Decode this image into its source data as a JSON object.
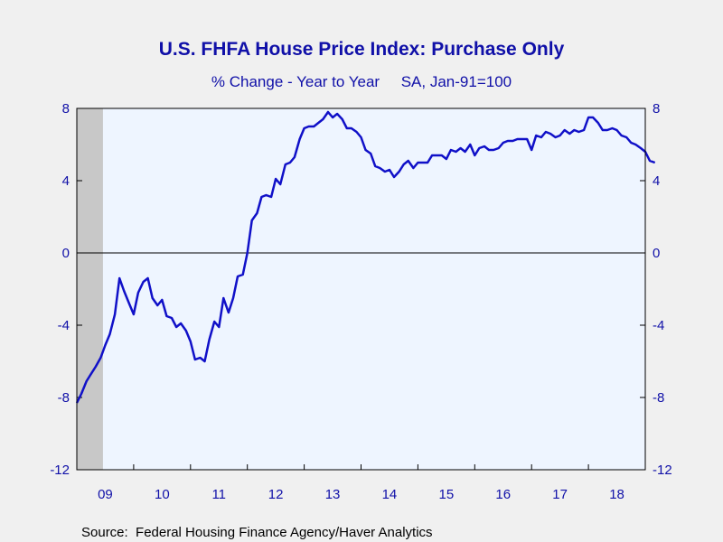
{
  "chart_data": {
    "type": "line",
    "title": "U.S. FHFA House Price Index: Purchase Only",
    "subtitle": "% Change - Year to Year     SA, Jan-91=100",
    "source": "Source:  Federal Housing Finance Agency/Haver Analytics",
    "ylim": [
      -12,
      8
    ],
    "yticks": [
      "8",
      "4",
      "0",
      "-4",
      "-8",
      "-12"
    ],
    "xlim": [
      2009.0,
      2019.0
    ],
    "xtick_labels": [
      "09",
      "10",
      "11",
      "12",
      "13",
      "14",
      "15",
      "16",
      "17",
      "18"
    ],
    "recession_band": [
      2009.0,
      2009.46
    ],
    "grid": false,
    "zero_line": true,
    "colors": {
      "line": "#1010c8",
      "plot_bg": "#eef5ff",
      "recession": "#c8c8c8",
      "text": "#1010a8"
    },
    "series": [
      {
        "values": [
          [
            2009.0,
            -8.3
          ],
          [
            2009.08,
            -7.8
          ],
          [
            2009.17,
            -7.1
          ],
          [
            2009.25,
            -6.7
          ],
          [
            2009.33,
            -6.3
          ],
          [
            2009.42,
            -5.8
          ],
          [
            2009.5,
            -5.1
          ],
          [
            2009.58,
            -4.5
          ],
          [
            2009.67,
            -3.4
          ],
          [
            2009.75,
            -1.4
          ],
          [
            2009.83,
            -2.1
          ],
          [
            2009.92,
            -2.8
          ],
          [
            2010.0,
            -3.4
          ],
          [
            2010.08,
            -2.2
          ],
          [
            2010.17,
            -1.6
          ],
          [
            2010.25,
            -1.4
          ],
          [
            2010.33,
            -2.5
          ],
          [
            2010.42,
            -2.9
          ],
          [
            2010.5,
            -2.6
          ],
          [
            2010.58,
            -3.5
          ],
          [
            2010.67,
            -3.6
          ],
          [
            2010.75,
            -4.1
          ],
          [
            2010.83,
            -3.9
          ],
          [
            2010.92,
            -4.3
          ],
          [
            2011.0,
            -4.9
          ],
          [
            2011.08,
            -5.9
          ],
          [
            2011.17,
            -5.8
          ],
          [
            2011.25,
            -6.0
          ],
          [
            2011.33,
            -4.8
          ],
          [
            2011.42,
            -3.8
          ],
          [
            2011.5,
            -4.1
          ],
          [
            2011.58,
            -2.5
          ],
          [
            2011.67,
            -3.3
          ],
          [
            2011.75,
            -2.5
          ],
          [
            2011.83,
            -1.3
          ],
          [
            2011.92,
            -1.2
          ],
          [
            2012.0,
            0.0
          ],
          [
            2012.08,
            1.8
          ],
          [
            2012.17,
            2.2
          ],
          [
            2012.25,
            3.1
          ],
          [
            2012.33,
            3.2
          ],
          [
            2012.42,
            3.1
          ],
          [
            2012.5,
            4.1
          ],
          [
            2012.58,
            3.8
          ],
          [
            2012.67,
            4.9
          ],
          [
            2012.75,
            5.0
          ],
          [
            2012.83,
            5.3
          ],
          [
            2012.92,
            6.3
          ],
          [
            2013.0,
            6.9
          ],
          [
            2013.08,
            7.0
          ],
          [
            2013.17,
            7.0
          ],
          [
            2013.25,
            7.2
          ],
          [
            2013.33,
            7.4
          ],
          [
            2013.42,
            7.8
          ],
          [
            2013.5,
            7.5
          ],
          [
            2013.58,
            7.7
          ],
          [
            2013.67,
            7.4
          ],
          [
            2013.75,
            6.9
          ],
          [
            2013.83,
            6.9
          ],
          [
            2013.92,
            6.7
          ],
          [
            2014.0,
            6.4
          ],
          [
            2014.08,
            5.7
          ],
          [
            2014.17,
            5.5
          ],
          [
            2014.25,
            4.8
          ],
          [
            2014.33,
            4.7
          ],
          [
            2014.42,
            4.5
          ],
          [
            2014.5,
            4.6
          ],
          [
            2014.58,
            4.2
          ],
          [
            2014.67,
            4.5
          ],
          [
            2014.75,
            4.9
          ],
          [
            2014.83,
            5.1
          ],
          [
            2014.92,
            4.7
          ],
          [
            2015.0,
            5.0
          ],
          [
            2015.08,
            5.0
          ],
          [
            2015.17,
            5.0
          ],
          [
            2015.25,
            5.4
          ],
          [
            2015.33,
            5.4
          ],
          [
            2015.42,
            5.4
          ],
          [
            2015.5,
            5.2
          ],
          [
            2015.58,
            5.7
          ],
          [
            2015.67,
            5.6
          ],
          [
            2015.75,
            5.8
          ],
          [
            2015.83,
            5.6
          ],
          [
            2015.92,
            6.0
          ],
          [
            2016.0,
            5.4
          ],
          [
            2016.08,
            5.8
          ],
          [
            2016.17,
            5.9
          ],
          [
            2016.25,
            5.7
          ],
          [
            2016.33,
            5.7
          ],
          [
            2016.42,
            5.8
          ],
          [
            2016.5,
            6.1
          ],
          [
            2016.58,
            6.2
          ],
          [
            2016.67,
            6.2
          ],
          [
            2016.75,
            6.3
          ],
          [
            2016.83,
            6.3
          ],
          [
            2016.92,
            6.3
          ],
          [
            2017.0,
            5.7
          ],
          [
            2017.08,
            6.5
          ],
          [
            2017.17,
            6.4
          ],
          [
            2017.25,
            6.7
          ],
          [
            2017.33,
            6.6
          ],
          [
            2017.42,
            6.4
          ],
          [
            2017.5,
            6.5
          ],
          [
            2017.58,
            6.8
          ],
          [
            2017.67,
            6.6
          ],
          [
            2017.75,
            6.8
          ],
          [
            2017.83,
            6.7
          ],
          [
            2017.92,
            6.8
          ],
          [
            2018.0,
            7.5
          ],
          [
            2018.08,
            7.5
          ],
          [
            2018.17,
            7.2
          ],
          [
            2018.25,
            6.8
          ],
          [
            2018.33,
            6.8
          ],
          [
            2018.42,
            6.9
          ],
          [
            2018.5,
            6.8
          ],
          [
            2018.58,
            6.5
          ],
          [
            2018.67,
            6.4
          ],
          [
            2018.75,
            6.1
          ],
          [
            2018.83,
            6.0
          ],
          [
            2018.92,
            5.8
          ],
          [
            2019.0,
            5.6
          ],
          [
            2019.08,
            5.1
          ],
          [
            2019.17,
            5.0
          ]
        ]
      }
    ]
  }
}
